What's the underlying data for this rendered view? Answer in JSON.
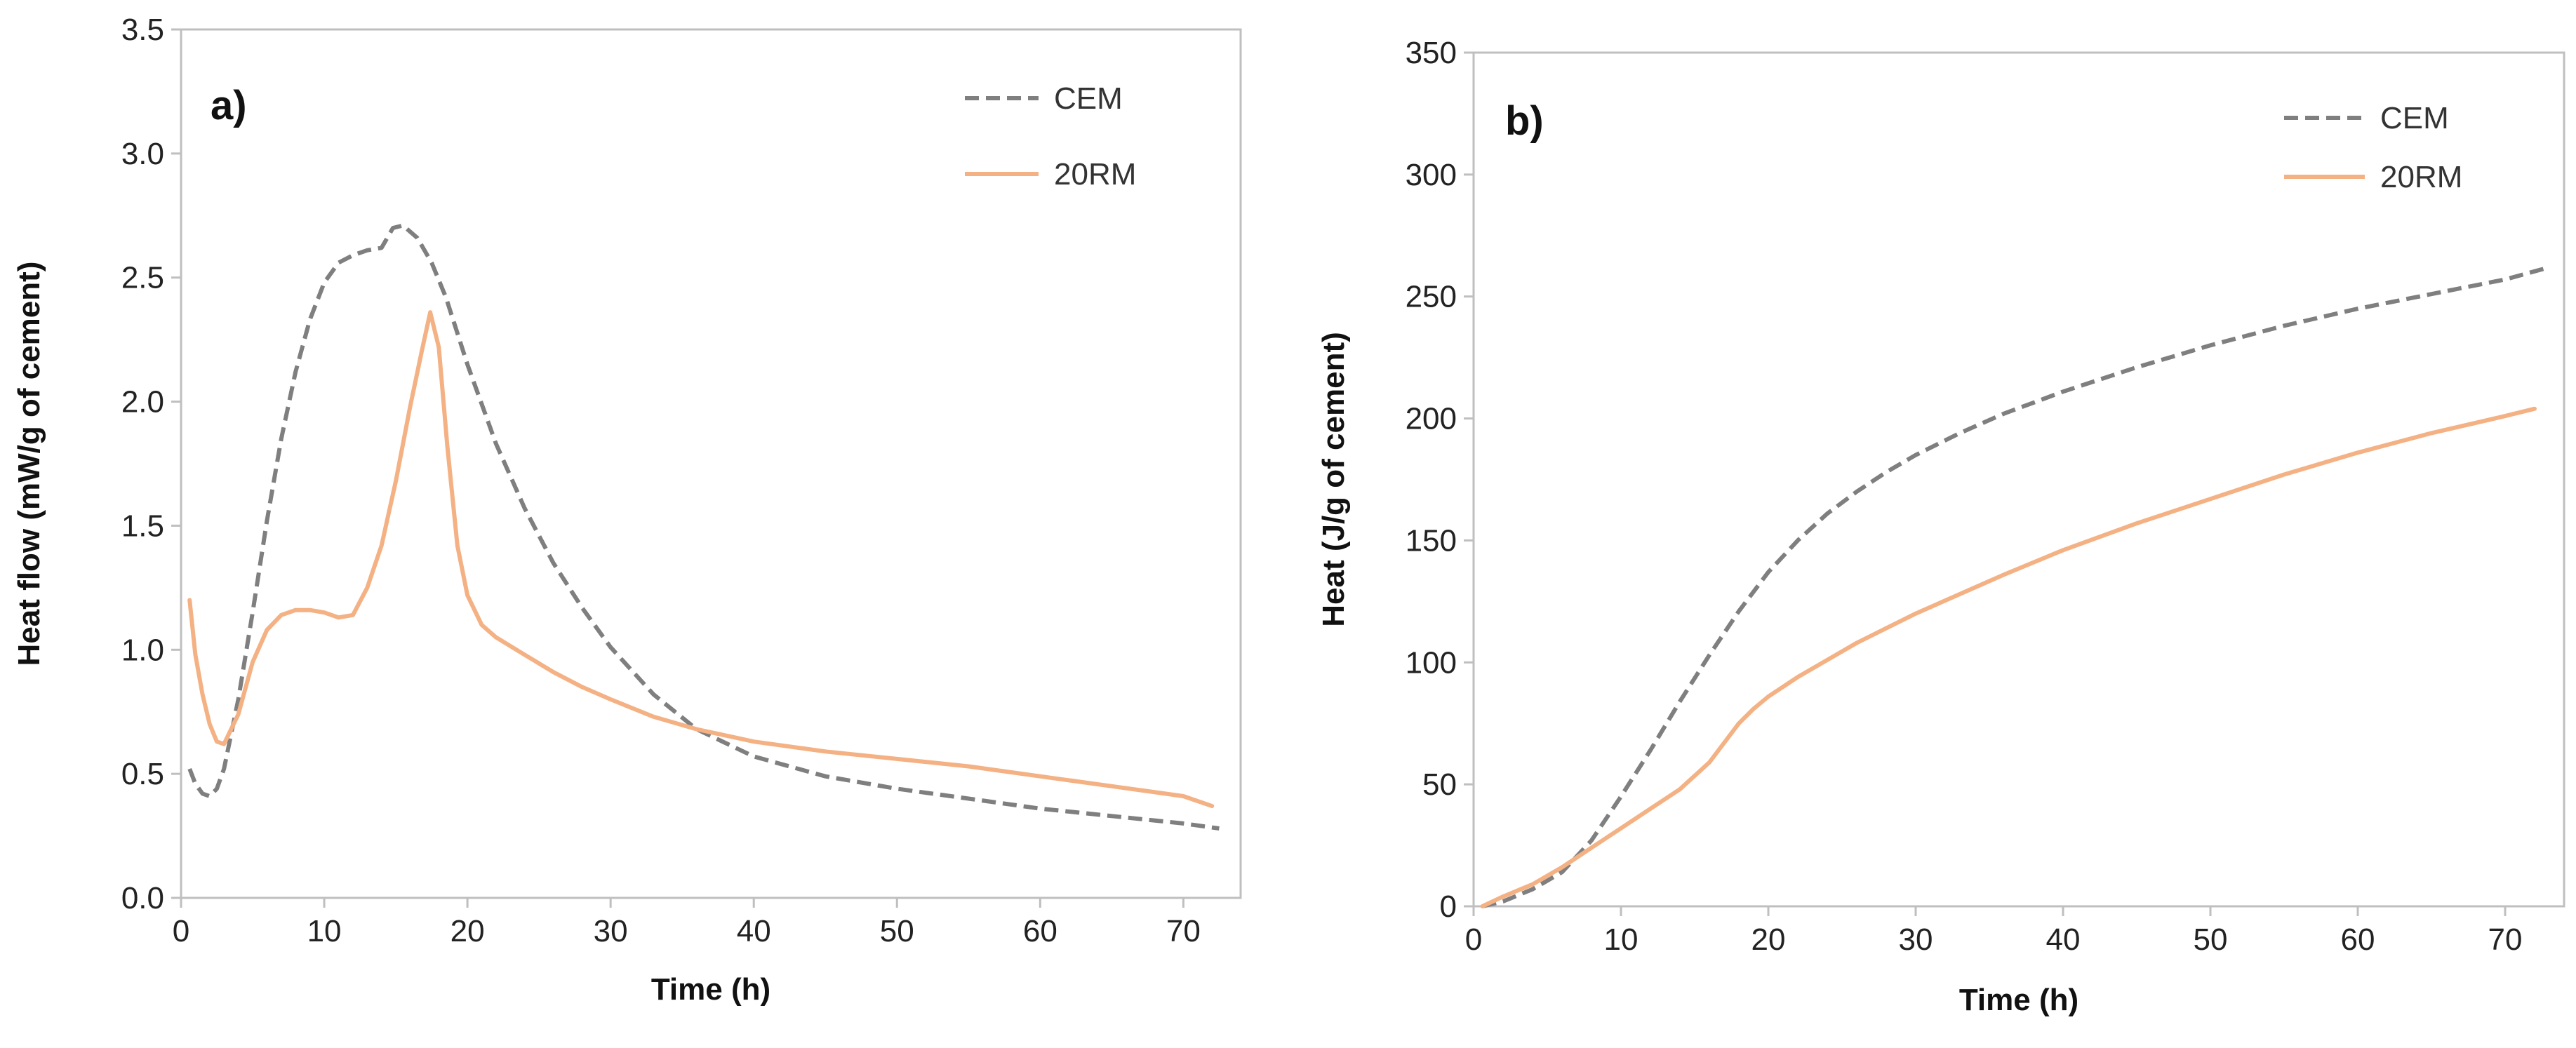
{
  "chart_data": [
    {
      "type": "line",
      "panel_label": "a)",
      "title": "",
      "xlabel": "Time (h)",
      "ylabel": "Heat flow (mW/g of cement)",
      "xlim": [
        0,
        74
      ],
      "ylim": [
        0,
        3.5
      ],
      "xticks": [
        0,
        10,
        20,
        30,
        40,
        50,
        60,
        70
      ],
      "yticks": [
        0.0,
        0.5,
        1.0,
        1.5,
        2.0,
        2.5,
        3.0,
        3.5
      ],
      "xtick_labels": [
        "0",
        "10",
        "20",
        "30",
        "40",
        "50",
        "60",
        "70"
      ],
      "ytick_labels": [
        "0.0",
        "0.5",
        "1.0",
        "1.5",
        "2.0",
        "2.5",
        "3.0",
        "3.5"
      ],
      "grid": false,
      "legend_position": "top-right",
      "series": [
        {
          "name": "CEM",
          "color": "#7f7f7f",
          "dash": "dashed",
          "x": [
            0.6,
            1.0,
            1.5,
            2.0,
            2.5,
            3.0,
            4.0,
            5.0,
            6.0,
            7.0,
            8.0,
            9.0,
            10.0,
            11.0,
            12.0,
            13.0,
            14.0,
            14.8,
            15.5,
            16.5,
            17.5,
            18.5,
            20.0,
            22.0,
            24.0,
            26.0,
            28.0,
            30.0,
            33.0,
            36.0,
            40.0,
            45.0,
            50.0,
            55.0,
            60.0,
            65.0,
            70.0,
            72.5
          ],
          "y": [
            0.52,
            0.46,
            0.42,
            0.41,
            0.44,
            0.52,
            0.8,
            1.15,
            1.52,
            1.85,
            2.12,
            2.33,
            2.48,
            2.56,
            2.59,
            2.61,
            2.62,
            2.7,
            2.71,
            2.66,
            2.56,
            2.42,
            2.15,
            1.83,
            1.57,
            1.35,
            1.17,
            1.01,
            0.82,
            0.68,
            0.57,
            0.49,
            0.44,
            0.4,
            0.36,
            0.33,
            0.3,
            0.28
          ]
        },
        {
          "name": "20RM",
          "color": "#f4b183",
          "dash": "solid",
          "x": [
            0.6,
            1.0,
            1.5,
            2.0,
            2.5,
            3.0,
            4.0,
            5.0,
            6.0,
            7.0,
            8.0,
            9.0,
            10.0,
            11.0,
            12.0,
            13.0,
            14.0,
            15.0,
            16.0,
            16.8,
            17.4,
            18.0,
            18.6,
            19.3,
            20.0,
            21.0,
            22.0,
            24.0,
            26.0,
            28.0,
            30.0,
            33.0,
            36.0,
            40.0,
            45.0,
            50.0,
            55.0,
            60.0,
            65.0,
            70.0,
            72.0
          ],
          "y": [
            1.2,
            0.98,
            0.82,
            0.7,
            0.63,
            0.62,
            0.74,
            0.95,
            1.08,
            1.14,
            1.16,
            1.16,
            1.15,
            1.13,
            1.14,
            1.25,
            1.42,
            1.68,
            1.98,
            2.2,
            2.36,
            2.22,
            1.82,
            1.42,
            1.22,
            1.1,
            1.05,
            0.98,
            0.91,
            0.85,
            0.8,
            0.73,
            0.68,
            0.63,
            0.59,
            0.56,
            0.53,
            0.49,
            0.45,
            0.41,
            0.37
          ]
        }
      ]
    },
    {
      "type": "line",
      "panel_label": "b)",
      "title": "",
      "xlabel": "Time (h)",
      "ylabel": "Heat (J/g of cement)",
      "xlim": [
        0,
        74
      ],
      "ylim": [
        0,
        350
      ],
      "xticks": [
        0,
        10,
        20,
        30,
        40,
        50,
        60,
        70
      ],
      "yticks": [
        0,
        50,
        100,
        150,
        200,
        250,
        300,
        350
      ],
      "xtick_labels": [
        "0",
        "10",
        "20",
        "30",
        "40",
        "50",
        "60",
        "70"
      ],
      "ytick_labels": [
        "0",
        "50",
        "100",
        "150",
        "200",
        "250",
        "300",
        "350"
      ],
      "grid": false,
      "legend_position": "top-right",
      "series": [
        {
          "name": "CEM",
          "color": "#7f7f7f",
          "dash": "dashed",
          "x": [
            0.6,
            2.0,
            4.0,
            6.0,
            8.0,
            10.0,
            12.0,
            14.0,
            16.0,
            18.0,
            20.0,
            22.0,
            24.0,
            26.0,
            28.0,
            30.0,
            33.0,
            36.0,
            40.0,
            45.0,
            50.0,
            55.0,
            60.0,
            65.0,
            70.0,
            73.0
          ],
          "y": [
            0,
            2,
            7,
            14,
            27,
            45,
            64,
            84,
            103,
            121,
            137,
            150,
            161,
            170,
            178,
            185,
            194,
            202,
            211,
            221,
            230,
            238,
            245,
            251,
            257,
            262
          ]
        },
        {
          "name": "20RM",
          "color": "#f4b183",
          "dash": "solid",
          "x": [
            0.6,
            2.0,
            4.0,
            6.0,
            8.0,
            10.0,
            12.0,
            14.0,
            16.0,
            17.0,
            18.0,
            19.0,
            20.0,
            22.0,
            24.0,
            26.0,
            28.0,
            30.0,
            33.0,
            36.0,
            40.0,
            45.0,
            50.0,
            55.0,
            60.0,
            65.0,
            70.0,
            72.0
          ],
          "y": [
            0,
            4,
            9,
            16,
            24,
            32,
            40,
            48,
            59,
            67,
            75,
            81,
            86,
            94,
            101,
            108,
            114,
            120,
            128,
            136,
            146,
            157,
            167,
            177,
            186,
            194,
            201,
            204
          ]
        }
      ]
    }
  ]
}
